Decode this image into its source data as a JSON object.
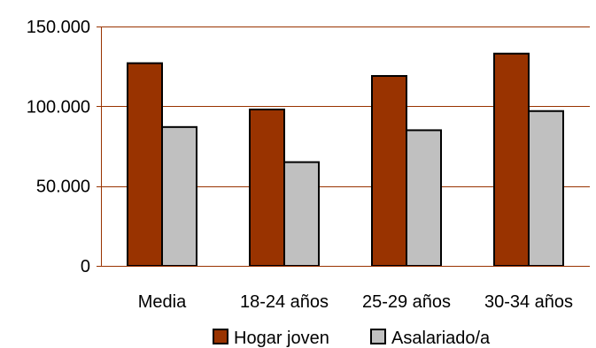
{
  "chart_data": {
    "type": "bar",
    "categories": [
      "Media",
      "18-24 años",
      "25-29 años",
      "30-34 años"
    ],
    "series": [
      {
        "name": "Hogar joven",
        "values": [
          127000,
          98000,
          119000,
          133000
        ],
        "color": "#993300"
      },
      {
        "name": "Asalariado/a",
        "values": [
          87000,
          65000,
          85000,
          97000
        ],
        "color": "#c0c0c0"
      }
    ],
    "yticks": [
      0,
      50000,
      100000,
      150000
    ],
    "ytick_labels": [
      "0",
      "50.000",
      "100.000",
      "150.000"
    ],
    "ylim": [
      0,
      150000
    ],
    "grid": true,
    "grid_color": "#993300",
    "legend_position": "bottom",
    "title": "",
    "xlabel": "",
    "ylabel": ""
  }
}
